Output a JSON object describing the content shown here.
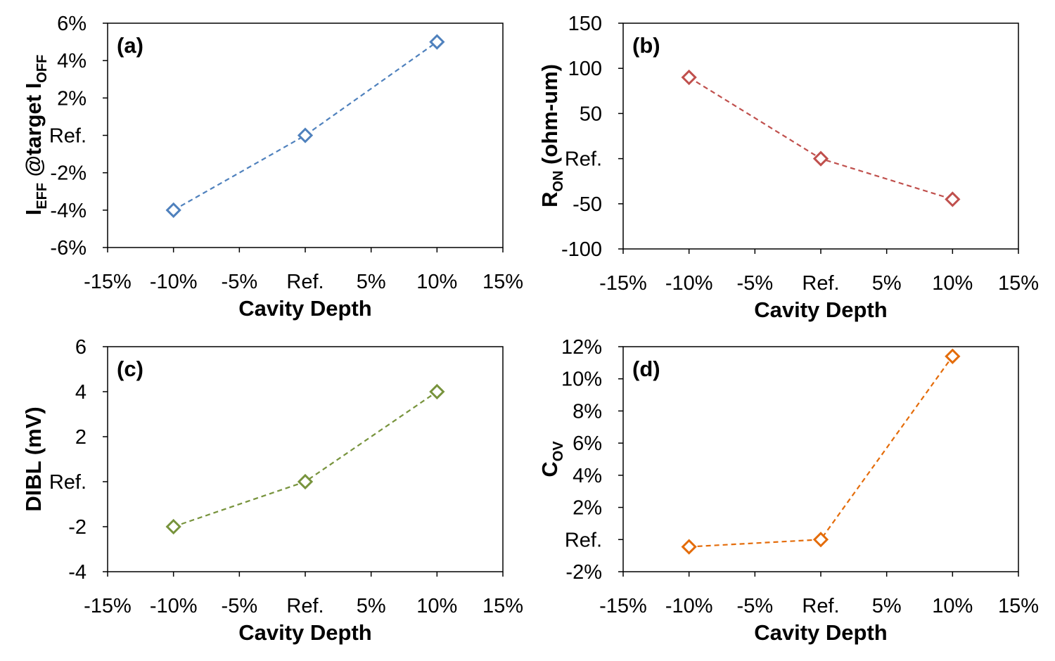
{
  "chart_data": [
    {
      "type": "line",
      "panel_label": "(a)",
      "xlabel": "Cavity Depth",
      "ylabel": {
        "main": "I",
        "sub1": "EFF",
        "mid": " @target I",
        "sub2": "OFF"
      },
      "xlim": [
        -15,
        15
      ],
      "xticks": [
        -15,
        -10,
        -5,
        0,
        5,
        10,
        15
      ],
      "xtick_labels": [
        "-15%",
        "-10%",
        "-5%",
        "Ref.",
        "5%",
        "10%",
        "15%"
      ],
      "ylim": [
        -6,
        6
      ],
      "yticks": [
        -6,
        -4,
        -2,
        0,
        2,
        4,
        6
      ],
      "ytick_labels": [
        "-6%",
        "-4%",
        "-2%",
        "Ref.",
        "2%",
        "4%",
        "6%"
      ],
      "series": [
        {
          "x": [
            -10,
            0,
            10
          ],
          "y": [
            -4,
            0,
            5
          ],
          "color": "#4F81BD"
        }
      ],
      "marker": "diamond-open",
      "line_style": "dashed",
      "grid": false
    },
    {
      "type": "line",
      "panel_label": "(b)",
      "xlabel": "Cavity Depth",
      "ylabel": {
        "main": "R",
        "sub1": "ON",
        "mid": " (ohm-um)",
        "sub2": ""
      },
      "xlim": [
        -15,
        15
      ],
      "xticks": [
        -15,
        -10,
        -5,
        0,
        5,
        10,
        15
      ],
      "xtick_labels": [
        "-15%",
        "-10%",
        "-5%",
        "Ref.",
        "5%",
        "10%",
        "15%"
      ],
      "ylim": [
        -100,
        150
      ],
      "yticks": [
        -100,
        -50,
        0,
        50,
        100,
        150
      ],
      "ytick_labels": [
        "-100",
        "-50",
        "Ref.",
        "50",
        "100",
        "150"
      ],
      "series": [
        {
          "x": [
            -10,
            0,
            10
          ],
          "y": [
            90,
            0,
            -45
          ],
          "color": "#C0504D"
        }
      ],
      "marker": "diamond-open",
      "line_style": "dashed",
      "grid": false
    },
    {
      "type": "line",
      "panel_label": "(c)",
      "xlabel": "Cavity Depth",
      "ylabel": {
        "main": "DIBL (mV)",
        "sub1": "",
        "mid": "",
        "sub2": ""
      },
      "xlim": [
        -15,
        15
      ],
      "xticks": [
        -15,
        -10,
        -5,
        0,
        5,
        10,
        15
      ],
      "xtick_labels": [
        "-15%",
        "-10%",
        "-5%",
        "Ref.",
        "5%",
        "10%",
        "15%"
      ],
      "ylim": [
        -4,
        6
      ],
      "yticks": [
        -4,
        -2,
        0,
        2,
        4,
        6
      ],
      "ytick_labels": [
        "-4",
        "-2",
        "Ref.",
        "2",
        "4",
        "6"
      ],
      "series": [
        {
          "x": [
            -10,
            0,
            10
          ],
          "y": [
            -2,
            0,
            4
          ],
          "color": "#77933C"
        }
      ],
      "marker": "diamond-open",
      "line_style": "dashed",
      "grid": false
    },
    {
      "type": "line",
      "panel_label": "(d)",
      "xlabel": "Cavity Depth",
      "ylabel": {
        "main": "C",
        "sub1": "OV",
        "mid": "",
        "sub2": ""
      },
      "xlim": [
        -15,
        15
      ],
      "xticks": [
        -15,
        -10,
        -5,
        0,
        5,
        10,
        15
      ],
      "xtick_labels": [
        "-15%",
        "-10%",
        "-5%",
        "Ref.",
        "5%",
        "10%",
        "15%"
      ],
      "ylim": [
        -2,
        12
      ],
      "yticks": [
        -2,
        0,
        2,
        4,
        6,
        8,
        10,
        12
      ],
      "ytick_labels": [
        "-2%",
        "Ref.",
        "2%",
        "4%",
        "6%",
        "8%",
        "10%",
        "12%"
      ],
      "series": [
        {
          "x": [
            -10,
            0,
            10
          ],
          "y": [
            -0.45,
            0,
            11.4
          ],
          "color": "#E46C0A"
        }
      ],
      "marker": "diamond-open",
      "line_style": "dashed",
      "grid": false
    }
  ]
}
